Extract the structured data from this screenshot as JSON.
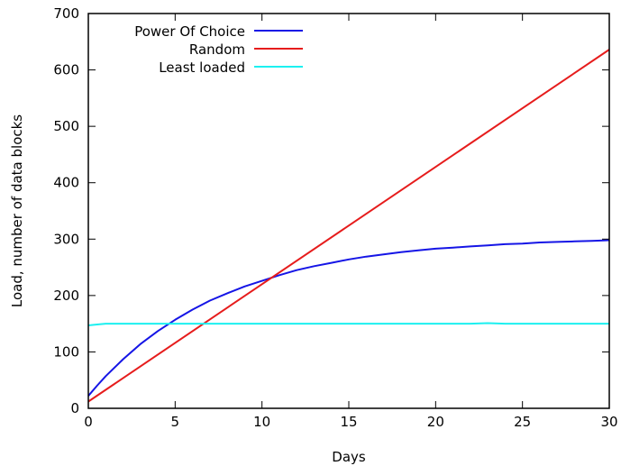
{
  "chart_data": {
    "type": "line",
    "title": "",
    "xlabel": "Days",
    "ylabel": "Load, number of data blocks",
    "xlim": [
      0,
      30
    ],
    "ylim": [
      0,
      700
    ],
    "x_ticks": [
      0,
      5,
      10,
      15,
      20,
      25,
      30
    ],
    "y_ticks": [
      0,
      100,
      200,
      300,
      400,
      500,
      600,
      700
    ],
    "grid": false,
    "legend_position": "top-left",
    "series": [
      {
        "name": "Power Of Choice",
        "color": "#1515e6",
        "x": [
          0,
          0.5,
          1,
          2,
          3,
          4,
          5,
          6,
          7,
          8,
          9,
          10,
          11,
          12,
          13,
          14,
          15,
          16,
          17,
          18,
          19,
          20,
          21,
          22,
          23,
          24,
          25,
          26,
          27,
          28,
          29,
          30
        ],
        "y": [
          22,
          40,
          57,
          87,
          114,
          137,
          157,
          175,
          191,
          204,
          216,
          226,
          236,
          245,
          252,
          258,
          264,
          269,
          273,
          277,
          280,
          283,
          285,
          287,
          289,
          291,
          292,
          294,
          295,
          296,
          297,
          298
        ]
      },
      {
        "name": "Random",
        "color": "#e61c1c",
        "x": [
          0,
          30
        ],
        "y": [
          12,
          636
        ]
      },
      {
        "name": "Least loaded",
        "color": "#1cf0f0",
        "x": [
          0,
          0.3,
          1,
          5,
          10,
          15,
          20,
          22,
          23,
          24,
          25,
          30
        ],
        "y": [
          147,
          148,
          150,
          150,
          150,
          150,
          150,
          150,
          151,
          150,
          150,
          150
        ]
      }
    ]
  }
}
